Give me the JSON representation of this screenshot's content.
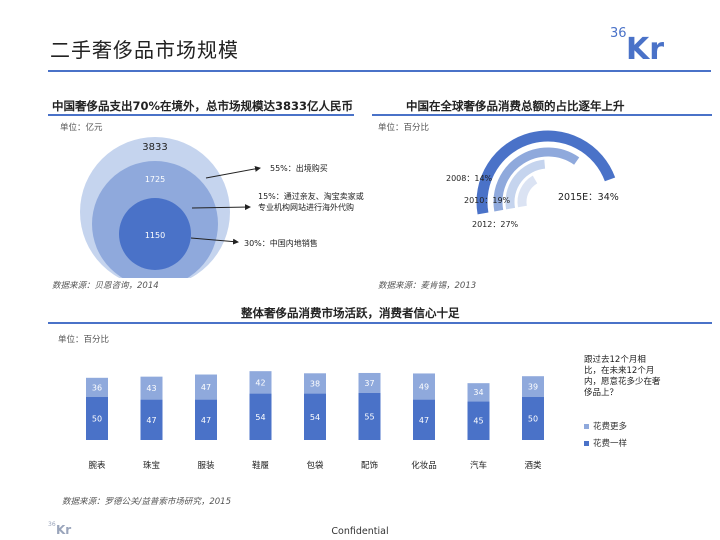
{
  "page": {
    "title": "二手奢侈品市场规模",
    "logo_text": "36Kr",
    "footer": "Confidential",
    "colors": {
      "accent": "#4a72c8",
      "light": "#c5d4ee",
      "mid": "#8fa9dc",
      "dark": "#4a72c8"
    }
  },
  "left_panel": {
    "title": "中国奢侈品支出70%在境外，总市场规模达3833亿人民币",
    "unit": "单位：亿元",
    "source": "数据来源：贝恩咨询，2014"
  },
  "right_panel": {
    "title": "中国在全球奢侈品消费总额的占比逐年上升",
    "unit": "单位：百分比",
    "source": "数据来源：麦肯锡，2013"
  },
  "bottom_panel": {
    "title": "整体奢侈品消费市场活跃，消费者信心十足",
    "unit": "单位：百分比",
    "source": "数据来源：罗德公关/益普索市场研究，2015",
    "question": "跟过去12个月相比，在未来12个月内，愿意花多少在奢侈品上？"
  },
  "chart_data": [
    {
      "type": "nested-circles",
      "title": "中国奢侈品支出70%在境外，总市场规模达3833亿人民币",
      "values": [
        3833,
        1725,
        1150
      ],
      "annotations": [
        "55%：出境购买",
        "15%：通过亲友、淘宝卖家或专业机构网站进行海外代购",
        "30%：中国内地销售"
      ]
    },
    {
      "type": "radial-bar",
      "title": "中国在全球奢侈品消费总额的占比逐年上升",
      "categories": [
        "2008",
        "2010",
        "2012",
        "2015E"
      ],
      "values": [
        14,
        19,
        27,
        34
      ],
      "labels": [
        "2008：14%",
        "2010：19%",
        "2012：27%",
        "2015E：34%"
      ]
    },
    {
      "type": "bar",
      "stacked": true,
      "title": "整体奢侈品消费市场活跃，消费者信心十足",
      "categories": [
        "腕表",
        "珠宝",
        "服装",
        "鞋履",
        "包袋",
        "配饰",
        "化妆品",
        "汽车",
        "酒类"
      ],
      "series": [
        {
          "name": "花费一样",
          "values": [
            50,
            47,
            47,
            54,
            54,
            55,
            47,
            45,
            50
          ]
        },
        {
          "name": "花费更多",
          "values": [
            36,
            43,
            47,
            42,
            38,
            37,
            49,
            34,
            39
          ]
        }
      ],
      "ylim": [
        0,
        110
      ]
    }
  ]
}
